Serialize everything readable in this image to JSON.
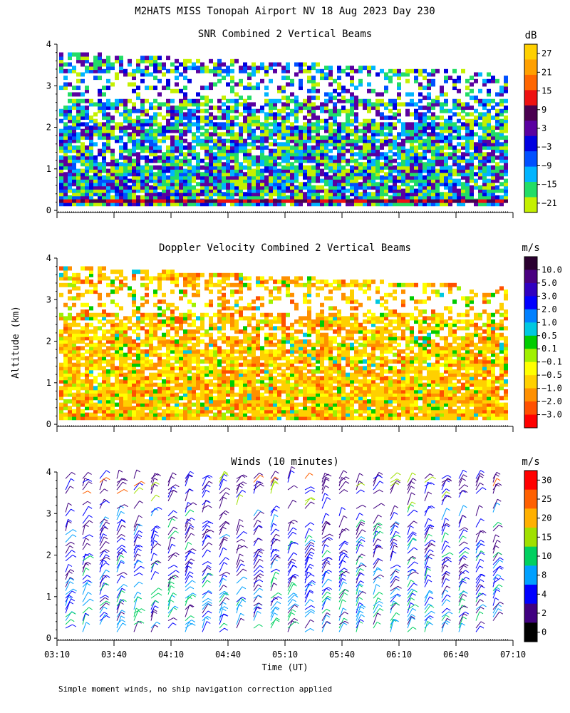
{
  "page": {
    "title": "M2HATS MISS Tonopah Airport NV  18 Aug 2023 Day 230",
    "ylabel": "Altitude (km)",
    "xlabel": "Time (UT)",
    "footnote": "Simple moment winds, no ship navigation correction applied"
  },
  "chart_data": [
    {
      "type": "heatmap",
      "title": "SNR Combined 2 Vertical Beams",
      "xlabel": "Time (UT)",
      "ylabel": "Altitude (km)",
      "x_ticks": [
        "03:10",
        "03:40",
        "04:10",
        "04:40",
        "05:10",
        "05:40",
        "06:10",
        "06:40",
        "07:10"
      ],
      "y_ticks": [
        "0",
        "1",
        "2",
        "3",
        "4"
      ],
      "ylim": [
        0,
        4
      ],
      "colorbar": {
        "unit": "dB",
        "labels": [
          "27",
          "21",
          "15",
          "9",
          "3",
          "−3",
          "−9",
          "−15",
          "−21"
        ],
        "colors": [
          "#ffd000",
          "#ffa000",
          "#ff6600",
          "#ee1111",
          "#4a0050",
          "#5a00a0",
          "#0000e0",
          "#0050ff",
          "#00b4ff",
          "#22dd66",
          "#c4f000"
        ]
      }
    },
    {
      "type": "heatmap",
      "title": "Doppler Velocity Combined 2 Vertical Beams",
      "xlabel": "Time (UT)",
      "ylabel": "Altitude (km)",
      "x_ticks": [
        "03:10",
        "03:40",
        "04:10",
        "04:40",
        "05:10",
        "05:40",
        "06:10",
        "06:40",
        "07:10"
      ],
      "y_ticks": [
        "0",
        "1",
        "2",
        "3",
        "4"
      ],
      "ylim": [
        0,
        4
      ],
      "colorbar": {
        "unit": "m/s",
        "labels": [
          "10.0",
          "5.0",
          "3.0",
          "2.0",
          "1.0",
          "0.5",
          "0.1",
          "−0.1",
          "−0.5",
          "−1.0",
          "−2.0",
          "−3.0"
        ],
        "colors": [
          "#2a0030",
          "#4a0080",
          "#3000c0",
          "#0000ff",
          "#0080ff",
          "#00c8e0",
          "#00cc00",
          "#a0f000",
          "#ffff00",
          "#ffd000",
          "#ff9000",
          "#ff5000",
          "#ff0000"
        ]
      }
    },
    {
      "type": "scatter",
      "title": "Winds (10 minutes)",
      "xlabel": "Time (UT)",
      "ylabel": "Altitude (km)",
      "x_ticks": [
        "03:10",
        "03:40",
        "04:10",
        "04:40",
        "05:10",
        "05:40",
        "06:10",
        "06:40",
        "07:10"
      ],
      "y_ticks": [
        "0",
        "1",
        "2",
        "3",
        "4"
      ],
      "ylim": [
        0,
        4
      ],
      "colorbar": {
        "unit": "m/s",
        "labels": [
          "30",
          "25",
          "20",
          "15",
          "10",
          "8",
          "4",
          "2",
          "0"
        ],
        "colors": [
          "#ff0000",
          "#ff6000",
          "#ffb000",
          "#a0e000",
          "#00d060",
          "#00a0ff",
          "#0000ff",
          "#400080",
          "#000000"
        ]
      }
    }
  ]
}
